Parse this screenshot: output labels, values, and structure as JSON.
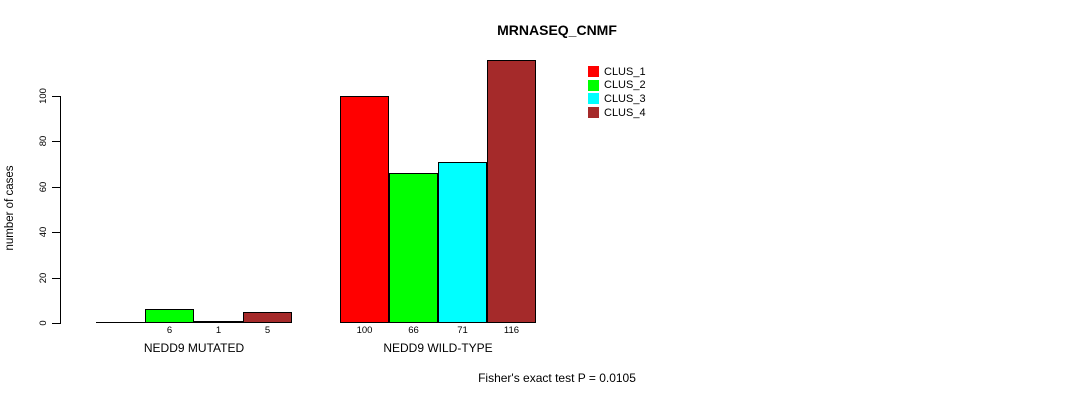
{
  "chart_data": {
    "type": "bar",
    "title": "MRNASEQ_CNMF",
    "xlabel": "",
    "ylabel": "number of cases",
    "categories": [
      "NEDD9 MUTATED",
      "NEDD9 WILD-TYPE"
    ],
    "series": [
      {
        "name": "CLUS_1",
        "color": "#ff0000",
        "values": [
          0,
          100
        ]
      },
      {
        "name": "CLUS_2",
        "color": "#00ff00",
        "values": [
          6,
          66
        ]
      },
      {
        "name": "CLUS_3",
        "color": "#00ffff",
        "values": [
          1,
          71
        ]
      },
      {
        "name": "CLUS_4",
        "color": "#a52a2a",
        "values": [
          5,
          116
        ]
      }
    ],
    "bar_value_labels": [
      [
        "",
        "6",
        "1",
        "5"
      ],
      [
        "100",
        "66",
        "71",
        "116"
      ]
    ],
    "yticks": [
      0,
      20,
      40,
      60,
      80,
      100
    ],
    "ylim": [
      0,
      116
    ],
    "grid": false,
    "legend_position": "inside-top-right",
    "annotation": "Fisher's exact test P = 0.0105",
    "axis_color": "#000000",
    "text_color": "#000000",
    "background_color": "#ffffff"
  }
}
